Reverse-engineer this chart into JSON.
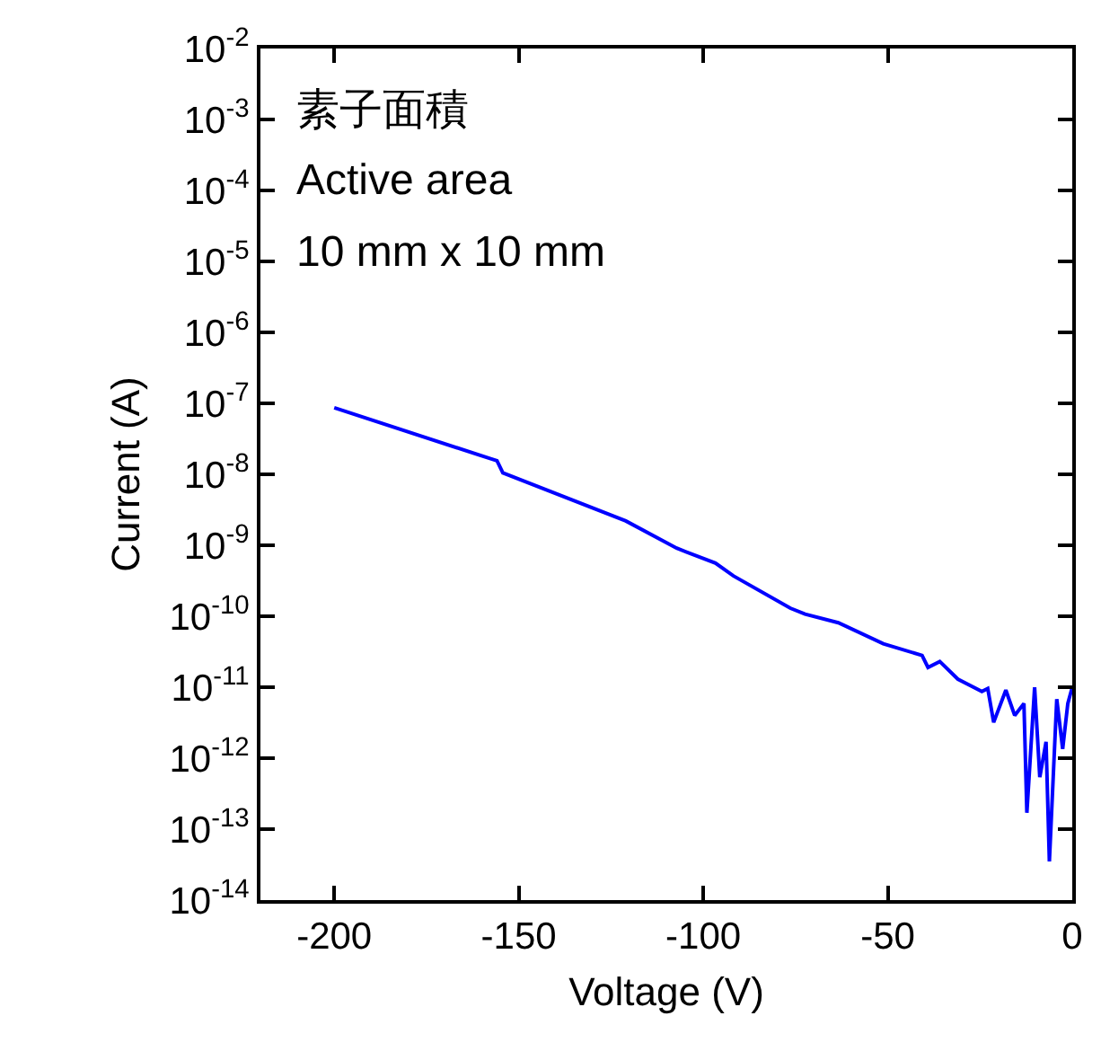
{
  "chart_data": {
    "type": "line",
    "xlabel": "Voltage (V)",
    "ylabel": "Current (A)",
    "log": "y",
    "grid": false,
    "marker": "none",
    "line_style": "solid",
    "annotations": [
      "素子面積",
      "Active area",
      "10 mm x 10 mm"
    ],
    "xlim": [
      -220,
      0
    ],
    "xticks": [
      -200,
      -150,
      -100,
      -50,
      0
    ],
    "ylim": [
      1e-14,
      0.01
    ],
    "yticks": [
      {
        "value": 0.01,
        "label": "10$^{-2}$"
      },
      {
        "value": 0.001,
        "label": "10$^{-3}$"
      },
      {
        "value": 0.0001,
        "label": "10$^{-4}$"
      },
      {
        "value": 1e-05,
        "label": "10$^{-5}$"
      },
      {
        "value": 1e-06,
        "label": "10$^{-6}$"
      },
      {
        "value": 1e-07,
        "label": "10$^{-7}$"
      },
      {
        "value": 1e-08,
        "label": "10$^{-8}$"
      },
      {
        "value": 1e-09,
        "label": "10$^{-9}$"
      },
      {
        "value": 1e-10,
        "label": "10$^{-10}$"
      },
      {
        "value": 1e-11,
        "label": "10$^{-11}$"
      },
      {
        "value": 1e-12,
        "label": "10$^{-12}$"
      },
      {
        "value": 1e-13,
        "label": "10$^{-13}$"
      },
      {
        "value": 1e-14,
        "label": "10$^{-14}$"
      }
    ],
    "series": [
      {
        "color": "#0000ff",
        "x": [
          -200,
          -155.9,
          -154.3,
          -121,
          -107.2,
          -96.7,
          -91.8,
          -76.4,
          -72.4,
          -63.4,
          -51.2,
          -40.7,
          -39.1,
          -35.9,
          -31,
          -24.5,
          -22.9,
          -21.3,
          -18,
          -15.6,
          -13.1,
          -12.3,
          -10.2,
          -8.8,
          -7.1,
          -6.2,
          -4.2,
          -2.6,
          -1.2,
          0
        ],
        "values": [
          8.7e-08,
          1.55e-08,
          1.05e-08,
          2.2e-09,
          9.1e-10,
          5.6e-10,
          3.7e-10,
          1.3e-10,
          1.07e-10,
          8.1e-11,
          4.1e-11,
          2.8e-11,
          1.9e-11,
          2.3e-11,
          1.3e-11,
          8.7e-12,
          9.6e-12,
          3.2e-12,
          9.1e-12,
          4e-12,
          5.9e-12,
          1.7e-13,
          1e-11,
          5.4e-13,
          1.7e-12,
          3.5e-14,
          6.8e-12,
          1.35e-12,
          5.9e-12,
          1e-11
        ]
      }
    ]
  }
}
